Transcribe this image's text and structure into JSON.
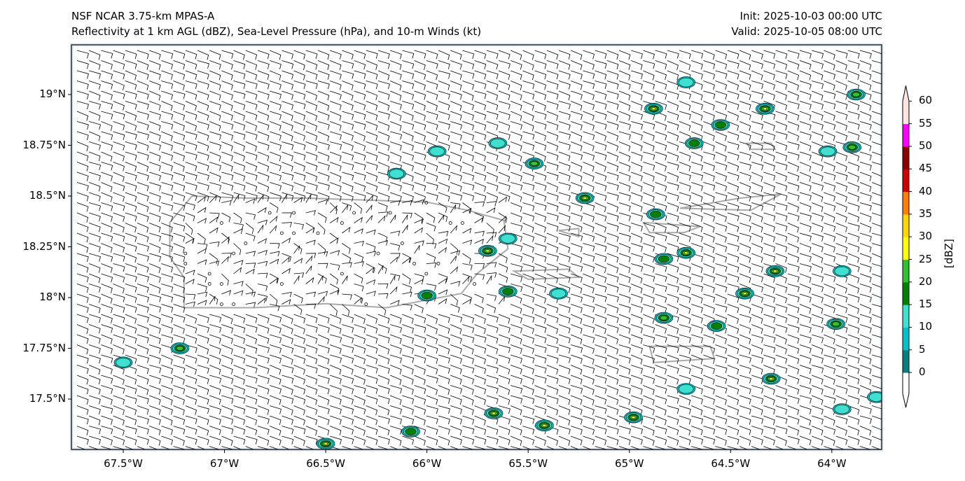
{
  "header": {
    "model": "NSF NCAR 3.75-km MPAS-A",
    "fields": "Reflectivity at 1 km AGL (dBZ), Sea-Level Pressure (hPa), and 10-m Winds (kt)",
    "init": "Init: 2025-10-03 00:00 UTC",
    "valid": "Valid: 2025-10-05 08:00 UTC"
  },
  "axes": {
    "lon_ticks": [
      {
        "v": -67.5,
        "label": "67.5°W"
      },
      {
        "v": -67,
        "label": "67°W"
      },
      {
        "v": -66.5,
        "label": "66.5°W"
      },
      {
        "v": -66,
        "label": "66°W"
      },
      {
        "v": -65.5,
        "label": "65.5°W"
      },
      {
        "v": -65,
        "label": "65°W"
      },
      {
        "v": -64.5,
        "label": "64.5°W"
      },
      {
        "v": -64,
        "label": "64°W"
      }
    ],
    "lat_ticks": [
      {
        "v": 19,
        "label": "19°N"
      },
      {
        "v": 18.75,
        "label": "18.75°N"
      },
      {
        "v": 18.5,
        "label": "18.5°N"
      },
      {
        "v": 18.25,
        "label": "18.25°N"
      },
      {
        "v": 18,
        "label": "18°N"
      },
      {
        "v": 17.75,
        "label": "17.75°N"
      },
      {
        "v": 17.5,
        "label": "17.5°N"
      }
    ],
    "lon_range": [
      -67.75,
      -63.75
    ],
    "lat_range": [
      17.26,
      19.25
    ]
  },
  "colorbar": {
    "label": "[dBZ]",
    "ticks": [
      "0",
      "5",
      "10",
      "15",
      "20",
      "25",
      "30",
      "35",
      "40",
      "45",
      "50",
      "55",
      "60"
    ],
    "colors": [
      "#008080",
      "#00c0c8",
      "#40e0d0",
      "#008000",
      "#32c032",
      "#ffff00",
      "#ffd700",
      "#ff8000",
      "#cc0000",
      "#8b0000",
      "#ff00ff",
      "#ffe4e1"
    ]
  },
  "cells": [
    {
      "lon": -64.88,
      "lat": 18.93,
      "dbz": 30
    },
    {
      "lon": -64.33,
      "lat": 18.93,
      "dbz": 25
    },
    {
      "lon": -63.88,
      "lat": 19.0,
      "dbz": 20
    },
    {
      "lon": -64.55,
      "lat": 18.85,
      "dbz": 15
    },
    {
      "lon": -64.72,
      "lat": 19.06,
      "dbz": 10
    },
    {
      "lon": -64.68,
      "lat": 18.76,
      "dbz": 15
    },
    {
      "lon": -63.9,
      "lat": 18.74,
      "dbz": 20
    },
    {
      "lon": -64.02,
      "lat": 18.72,
      "dbz": 10
    },
    {
      "lon": -65.95,
      "lat": 18.72,
      "dbz": 10
    },
    {
      "lon": -65.65,
      "lat": 18.76,
      "dbz": 10
    },
    {
      "lon": -65.47,
      "lat": 18.66,
      "dbz": 20
    },
    {
      "lon": -66.15,
      "lat": 18.61,
      "dbz": 10
    },
    {
      "lon": -65.22,
      "lat": 18.49,
      "dbz": 25
    },
    {
      "lon": -64.87,
      "lat": 18.41,
      "dbz": 15
    },
    {
      "lon": -65.7,
      "lat": 18.23,
      "dbz": 30
    },
    {
      "lon": -65.6,
      "lat": 18.29,
      "dbz": 10
    },
    {
      "lon": -64.72,
      "lat": 18.22,
      "dbz": 30
    },
    {
      "lon": -64.83,
      "lat": 18.19,
      "dbz": 15
    },
    {
      "lon": -64.28,
      "lat": 18.13,
      "dbz": 25
    },
    {
      "lon": -63.95,
      "lat": 18.13,
      "dbz": 10
    },
    {
      "lon": -65.6,
      "lat": 18.03,
      "dbz": 15
    },
    {
      "lon": -65.35,
      "lat": 18.02,
      "dbz": 10
    },
    {
      "lon": -66.0,
      "lat": 18.01,
      "dbz": 15
    },
    {
      "lon": -64.43,
      "lat": 18.02,
      "dbz": 25
    },
    {
      "lon": -64.83,
      "lat": 17.9,
      "dbz": 20
    },
    {
      "lon": -64.57,
      "lat": 17.86,
      "dbz": 15
    },
    {
      "lon": -63.98,
      "lat": 17.87,
      "dbz": 20
    },
    {
      "lon": -67.22,
      "lat": 17.75,
      "dbz": 20
    },
    {
      "lon": -67.5,
      "lat": 17.68,
      "dbz": 10
    },
    {
      "lon": -64.3,
      "lat": 17.6,
      "dbz": 25
    },
    {
      "lon": -64.72,
      "lat": 17.55,
      "dbz": 10
    },
    {
      "lon": -63.78,
      "lat": 17.51,
      "dbz": 10
    },
    {
      "lon": -63.95,
      "lat": 17.45,
      "dbz": 10
    },
    {
      "lon": -65.67,
      "lat": 17.43,
      "dbz": 30
    },
    {
      "lon": -65.42,
      "lat": 17.37,
      "dbz": 25
    },
    {
      "lon": -64.98,
      "lat": 17.41,
      "dbz": 25
    },
    {
      "lon": -66.08,
      "lat": 17.34,
      "dbz": 15
    },
    {
      "lon": -66.5,
      "lat": 17.28,
      "dbz": 30
    }
  ]
}
